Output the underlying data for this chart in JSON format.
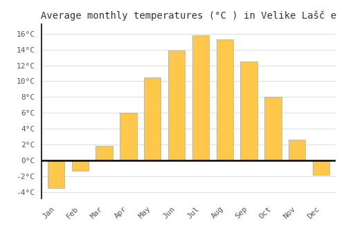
{
  "months": [
    "Jan",
    "Feb",
    "Mar",
    "Apr",
    "May",
    "Jun",
    "Jul",
    "Aug",
    "Sep",
    "Oct",
    "Nov",
    "Dec"
  ],
  "temperatures": [
    -3.5,
    -1.3,
    1.8,
    6.0,
    10.5,
    13.9,
    15.8,
    15.3,
    12.5,
    8.0,
    2.6,
    -1.8
  ],
  "bar_color": "#FFC84A",
  "bar_edge_color": "#AAAAAA",
  "title": "Average monthly temperatures (°C ) in Velike Lašč e",
  "title_fontsize": 10,
  "ylabel_ticks": [
    "-4°C",
    "-2°C",
    "0°C",
    "2°C",
    "4°C",
    "6°C",
    "8°C",
    "10°C",
    "12°C",
    "14°C",
    "16°C"
  ],
  "ytick_values": [
    -4,
    -2,
    0,
    2,
    4,
    6,
    8,
    10,
    12,
    14,
    16
  ],
  "ylim": [
    -4.8,
    17.2
  ],
  "grid_color": "#DDDDDD",
  "background_color": "#FFFFFF",
  "zero_line_color": "#000000",
  "tick_label_fontsize": 8,
  "bar_width": 0.7,
  "left_spine_color": "#333333"
}
